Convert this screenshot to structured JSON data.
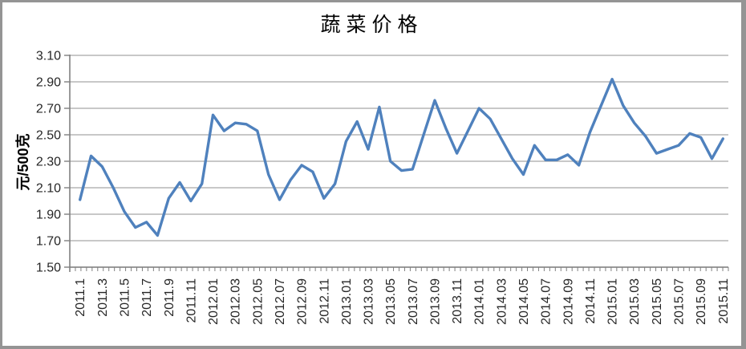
{
  "chart_data": {
    "type": "line",
    "title": "蔬菜价格",
    "ylabel": "元/500克",
    "xlabel": "",
    "ylim": [
      1.5,
      3.1
    ],
    "ytick_step": 0.2,
    "grid": true,
    "legend": "none",
    "yticks": [
      "3.10",
      "2.90",
      "2.70",
      "2.50",
      "2.30",
      "2.10",
      "1.90",
      "1.70",
      "1.50"
    ],
    "xtick_labels": [
      "2011.1",
      "2011.3",
      "2011.5",
      "2011.7",
      "2011.9",
      "2011.11",
      "2012.01",
      "2012.03",
      "2012.05",
      "2012.07",
      "2012.09",
      "2012.11",
      "2013.01",
      "2013.03",
      "2013.05",
      "2013.07",
      "2013.09",
      "2013.11",
      "2014.01",
      "2014.03",
      "2014.05",
      "2014.07",
      "2014.09",
      "2014.11",
      "2015.01",
      "2015.03",
      "2015.05",
      "2015.07",
      "2015.09",
      "2015.11"
    ],
    "categories": [
      "2011.1",
      "2011.2",
      "2011.3",
      "2011.4",
      "2011.5",
      "2011.6",
      "2011.7",
      "2011.8",
      "2011.9",
      "2011.10",
      "2011.11",
      "2011.12",
      "2012.01",
      "2012.02",
      "2012.03",
      "2012.04",
      "2012.05",
      "2012.06",
      "2012.07",
      "2012.08",
      "2012.09",
      "2012.10",
      "2012.11",
      "2012.12",
      "2013.01",
      "2013.02",
      "2013.03",
      "2013.04",
      "2013.05",
      "2013.06",
      "2013.07",
      "2013.08",
      "2013.09",
      "2013.10",
      "2013.11",
      "2013.12",
      "2014.01",
      "2014.02",
      "2014.03",
      "2014.04",
      "2014.05",
      "2014.06",
      "2014.07",
      "2014.08",
      "2014.09",
      "2014.10",
      "2014.11",
      "2014.12",
      "2015.01",
      "2015.02",
      "2015.03",
      "2015.04",
      "2015.05",
      "2015.06",
      "2015.07",
      "2015.08",
      "2015.09",
      "2015.10",
      "2015.11"
    ],
    "series": [
      {
        "name": "蔬菜价格",
        "color": "#4F81BD",
        "values": [
          2.01,
          2.34,
          2.26,
          2.1,
          1.92,
          1.8,
          1.84,
          1.74,
          2.02,
          2.14,
          2.0,
          2.13,
          2.65,
          2.53,
          2.59,
          2.58,
          2.53,
          2.2,
          2.01,
          2.16,
          2.27,
          2.22,
          2.02,
          2.13,
          2.45,
          2.6,
          2.39,
          2.71,
          2.3,
          2.23,
          2.24,
          2.5,
          2.76,
          2.55,
          2.36,
          2.53,
          2.7,
          2.62,
          2.47,
          2.32,
          2.2,
          2.42,
          2.31,
          2.31,
          2.35,
          2.27,
          2.52,
          2.72,
          2.92,
          2.72,
          2.59,
          2.49,
          2.36,
          2.39,
          2.42,
          2.51,
          2.48,
          2.32,
          2.47
        ]
      }
    ],
    "colors": {
      "line": "#4F81BD",
      "gridline": "#a6a6a6",
      "axis": "#808080",
      "tick_text": "#262626",
      "frame_border": "#949494",
      "background": "#ffffff"
    }
  }
}
